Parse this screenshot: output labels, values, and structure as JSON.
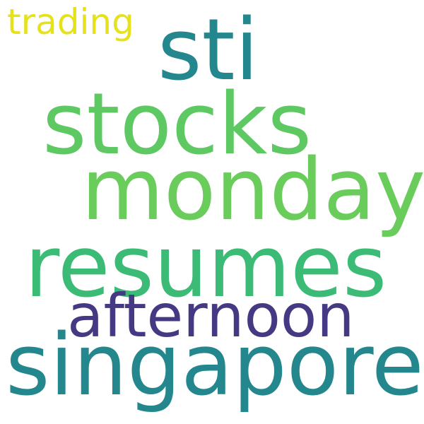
{
  "words": [
    {
      "text": "trading",
      "color": "#e5e11b"
    },
    {
      "text": "sti",
      "color": "#24878e"
    },
    {
      "text": "stocks",
      "color": "#5ec962"
    },
    {
      "text": "monday",
      "color": "#69cc5b"
    },
    {
      "text": "resumes",
      "color": "#3bbb75"
    },
    {
      "text": "afternoon",
      "color": "#443982"
    },
    {
      "text": "singapore",
      "color": "#23878d"
    }
  ]
}
